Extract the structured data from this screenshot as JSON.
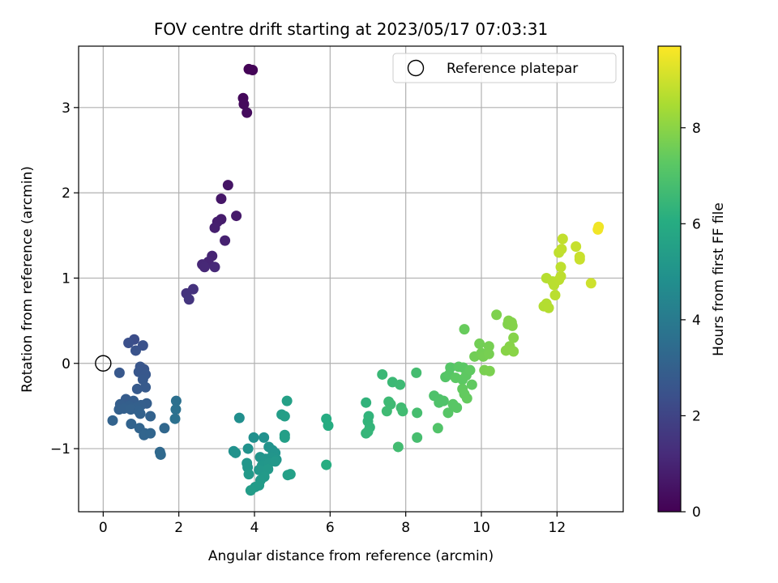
{
  "chart_data": {
    "type": "scatter",
    "title": "FOV centre drift starting at 2023/05/17 07:03:31",
    "xlabel": "Angular distance from reference (arcmin)",
    "ylabel": "Rotation from reference (arcmin)",
    "xlim": [
      -0.65,
      13.75
    ],
    "ylim": [
      -1.74,
      3.72
    ],
    "x_ticks": [
      0,
      2,
      4,
      6,
      8,
      10,
      12
    ],
    "y_ticks": [
      -1,
      0,
      1,
      2,
      3
    ],
    "grid": true,
    "legend": {
      "position": "top-right",
      "entries": [
        "Reference platepar"
      ]
    },
    "reference_point": {
      "x": 0,
      "y": 0
    },
    "colorbar": {
      "label": "Hours from first FF file",
      "min": 0,
      "max": 9.7,
      "ticks": [
        0,
        2,
        4,
        6,
        8
      ],
      "colormap": "viridis"
    },
    "points": [
      [
        3.85,
        3.45,
        0.05
      ],
      [
        3.95,
        3.44,
        0.1
      ],
      [
        3.7,
        3.11,
        0.2
      ],
      [
        3.72,
        3.04,
        0.25
      ],
      [
        3.8,
        2.94,
        0.3
      ],
      [
        3.3,
        2.09,
        0.55
      ],
      [
        3.12,
        1.93,
        0.6
      ],
      [
        3.52,
        1.73,
        0.7
      ],
      [
        3.12,
        1.69,
        0.75
      ],
      [
        3.02,
        1.66,
        0.8
      ],
      [
        2.95,
        1.59,
        0.85
      ],
      [
        3.22,
        1.44,
        0.9
      ],
      [
        2.88,
        1.26,
        1.0
      ],
      [
        2.78,
        1.19,
        1.05
      ],
      [
        2.62,
        1.16,
        1.1
      ],
      [
        2.68,
        1.13,
        1.12
      ],
      [
        2.95,
        1.13,
        1.15
      ],
      [
        2.38,
        0.87,
        1.4
      ],
      [
        2.2,
        0.82,
        1.45
      ],
      [
        2.27,
        0.75,
        1.5
      ],
      [
        0.82,
        0.28,
        2.3
      ],
      [
        0.67,
        0.24,
        2.4
      ],
      [
        1.05,
        0.21,
        2.45
      ],
      [
        0.86,
        0.15,
        2.5
      ],
      [
        0.98,
        -0.04,
        2.6
      ],
      [
        1.08,
        -0.07,
        2.62
      ],
      [
        0.94,
        -0.1,
        2.65
      ],
      [
        1.12,
        -0.13,
        2.68
      ],
      [
        0.43,
        -0.11,
        2.7
      ],
      [
        1.05,
        -0.19,
        2.72
      ],
      [
        1.12,
        -0.28,
        2.75
      ],
      [
        0.9,
        -0.3,
        2.78
      ],
      [
        0.6,
        -0.42,
        2.85
      ],
      [
        0.8,
        -0.44,
        2.88
      ],
      [
        0.45,
        -0.48,
        2.9
      ],
      [
        1.15,
        -0.47,
        2.92
      ],
      [
        1.0,
        -0.49,
        2.94
      ],
      [
        0.68,
        -0.5,
        2.96
      ],
      [
        0.88,
        -0.52,
        2.98
      ],
      [
        0.42,
        -0.54,
        3.0
      ],
      [
        0.55,
        -0.53,
        3.0
      ],
      [
        0.73,
        -0.54,
        3.02
      ],
      [
        0.94,
        -0.56,
        3.04
      ],
      [
        0.98,
        -0.59,
        3.06
      ],
      [
        1.25,
        -0.62,
        3.08
      ],
      [
        0.25,
        -0.67,
        3.1
      ],
      [
        0.74,
        -0.71,
        3.12
      ],
      [
        0.96,
        -0.76,
        3.14
      ],
      [
        1.1,
        -0.82,
        3.16
      ],
      [
        1.08,
        -0.84,
        3.18
      ],
      [
        1.25,
        -0.82,
        3.2
      ],
      [
        1.62,
        -0.76,
        3.25
      ],
      [
        1.5,
        -1.04,
        3.3
      ],
      [
        1.52,
        -1.07,
        3.32
      ],
      [
        1.93,
        -0.44,
        3.6
      ],
      [
        1.92,
        -0.54,
        3.62
      ],
      [
        1.9,
        -0.65,
        3.64
      ],
      [
        3.6,
        -0.64,
        4.8
      ],
      [
        3.98,
        -0.87,
        4.85
      ],
      [
        4.25,
        -0.87,
        4.88
      ],
      [
        3.45,
        -1.03,
        4.9
      ],
      [
        3.5,
        -1.05,
        4.92
      ],
      [
        3.83,
        -1.0,
        4.94
      ],
      [
        4.38,
        -0.98,
        4.96
      ],
      [
        4.48,
        -1.02,
        4.98
      ],
      [
        4.55,
        -1.05,
        5.0
      ],
      [
        4.15,
        -1.1,
        5.02
      ],
      [
        4.3,
        -1.12,
        5.04
      ],
      [
        4.45,
        -1.1,
        5.06
      ],
      [
        4.58,
        -1.13,
        5.08
      ],
      [
        3.8,
        -1.17,
        5.1
      ],
      [
        3.82,
        -1.22,
        5.12
      ],
      [
        4.2,
        -1.2,
        5.14
      ],
      [
        4.38,
        -1.17,
        5.16
      ],
      [
        4.55,
        -1.15,
        5.18
      ],
      [
        4.12,
        -1.25,
        5.2
      ],
      [
        4.36,
        -1.24,
        5.22
      ],
      [
        3.85,
        -1.3,
        5.24
      ],
      [
        4.26,
        -1.33,
        5.26
      ],
      [
        4.16,
        -1.37,
        5.28
      ],
      [
        4.02,
        -1.45,
        5.3
      ],
      [
        4.12,
        -1.43,
        5.32
      ],
      [
        3.9,
        -1.49,
        5.34
      ],
      [
        4.72,
        -0.6,
        5.4
      ],
      [
        4.8,
        -0.62,
        5.42
      ],
      [
        4.8,
        -0.84,
        5.44
      ],
      [
        4.8,
        -0.87,
        5.46
      ],
      [
        4.88,
        -1.31,
        5.48
      ],
      [
        4.95,
        -1.3,
        5.5
      ],
      [
        4.86,
        -0.44,
        5.52
      ],
      [
        5.9,
        -0.65,
        6.0
      ],
      [
        5.95,
        -0.73,
        6.02
      ],
      [
        5.9,
        -1.19,
        6.05
      ],
      [
        6.95,
        -0.46,
        6.3
      ],
      [
        7.02,
        -0.62,
        6.32
      ],
      [
        7.0,
        -0.68,
        6.34
      ],
      [
        7.05,
        -0.75,
        6.36
      ],
      [
        6.95,
        -0.82,
        6.38
      ],
      [
        7.0,
        -0.8,
        6.4
      ],
      [
        7.38,
        -0.13,
        6.5
      ],
      [
        7.65,
        -0.22,
        6.55
      ],
      [
        7.85,
        -0.25,
        6.58
      ],
      [
        7.55,
        -0.45,
        6.6
      ],
      [
        7.6,
        -0.48,
        6.62
      ],
      [
        7.5,
        -0.56,
        6.64
      ],
      [
        7.88,
        -0.52,
        6.66
      ],
      [
        7.92,
        -0.56,
        6.68
      ],
      [
        7.8,
        -0.98,
        6.7
      ],
      [
        8.28,
        -0.11,
        6.75
      ],
      [
        8.3,
        -0.58,
        6.78
      ],
      [
        8.3,
        -0.87,
        6.8
      ],
      [
        8.75,
        -0.38,
        6.95
      ],
      [
        8.88,
        -0.42,
        6.98
      ],
      [
        8.88,
        -0.46,
        7.0
      ],
      [
        9.0,
        -0.44,
        7.02
      ],
      [
        8.85,
        -0.76,
        7.04
      ],
      [
        9.05,
        -0.16,
        7.1
      ],
      [
        9.18,
        -0.05,
        7.12
      ],
      [
        9.15,
        -0.13,
        7.14
      ],
      [
        9.12,
        -0.58,
        7.16
      ],
      [
        9.25,
        -0.48,
        7.18
      ],
      [
        9.35,
        -0.52,
        7.2
      ],
      [
        9.4,
        -0.04,
        7.22
      ],
      [
        9.52,
        -0.05,
        7.24
      ],
      [
        9.32,
        -0.17,
        7.26
      ],
      [
        9.5,
        -0.19,
        7.28
      ],
      [
        9.6,
        -0.14,
        7.3
      ],
      [
        9.7,
        -0.08,
        7.32
      ],
      [
        9.75,
        -0.25,
        7.34
      ],
      [
        9.5,
        -0.3,
        7.36
      ],
      [
        9.55,
        -0.36,
        7.38
      ],
      [
        9.62,
        -0.41,
        7.4
      ],
      [
        9.55,
        0.4,
        7.45
      ],
      [
        9.82,
        0.08,
        7.6
      ],
      [
        9.95,
        0.23,
        7.62
      ],
      [
        10.0,
        0.12,
        7.64
      ],
      [
        10.05,
        0.08,
        7.66
      ],
      [
        10.2,
        0.2,
        7.68
      ],
      [
        10.2,
        0.11,
        7.7
      ],
      [
        10.08,
        -0.08,
        7.72
      ],
      [
        10.22,
        -0.09,
        7.74
      ],
      [
        10.4,
        0.57,
        7.8
      ],
      [
        10.7,
        0.46,
        7.85
      ],
      [
        10.72,
        0.5,
        7.87
      ],
      [
        10.8,
        0.48,
        7.89
      ],
      [
        10.82,
        0.44,
        7.9
      ],
      [
        10.85,
        0.3,
        7.92
      ],
      [
        10.75,
        0.2,
        7.94
      ],
      [
        10.65,
        0.15,
        7.96
      ],
      [
        10.85,
        0.14,
        7.98
      ],
      [
        11.65,
        0.67,
        8.6
      ],
      [
        11.72,
        0.7,
        8.62
      ],
      [
        11.78,
        0.65,
        8.64
      ],
      [
        11.72,
        1.0,
        8.66
      ],
      [
        11.88,
        0.96,
        8.68
      ],
      [
        11.92,
        0.92,
        8.7
      ],
      [
        11.95,
        0.8,
        8.72
      ],
      [
        12.05,
        0.98,
        8.74
      ],
      [
        12.1,
        1.02,
        8.76
      ],
      [
        12.1,
        1.13,
        8.78
      ],
      [
        12.05,
        1.3,
        8.8
      ],
      [
        12.12,
        1.34,
        8.82
      ],
      [
        12.15,
        1.46,
        8.84
      ],
      [
        12.5,
        1.37,
        8.9
      ],
      [
        12.6,
        1.25,
        8.92
      ],
      [
        12.6,
        1.22,
        8.94
      ],
      [
        12.9,
        0.94,
        9.0
      ],
      [
        13.1,
        1.6,
        9.5
      ],
      [
        13.08,
        1.57,
        9.52
      ]
    ]
  }
}
